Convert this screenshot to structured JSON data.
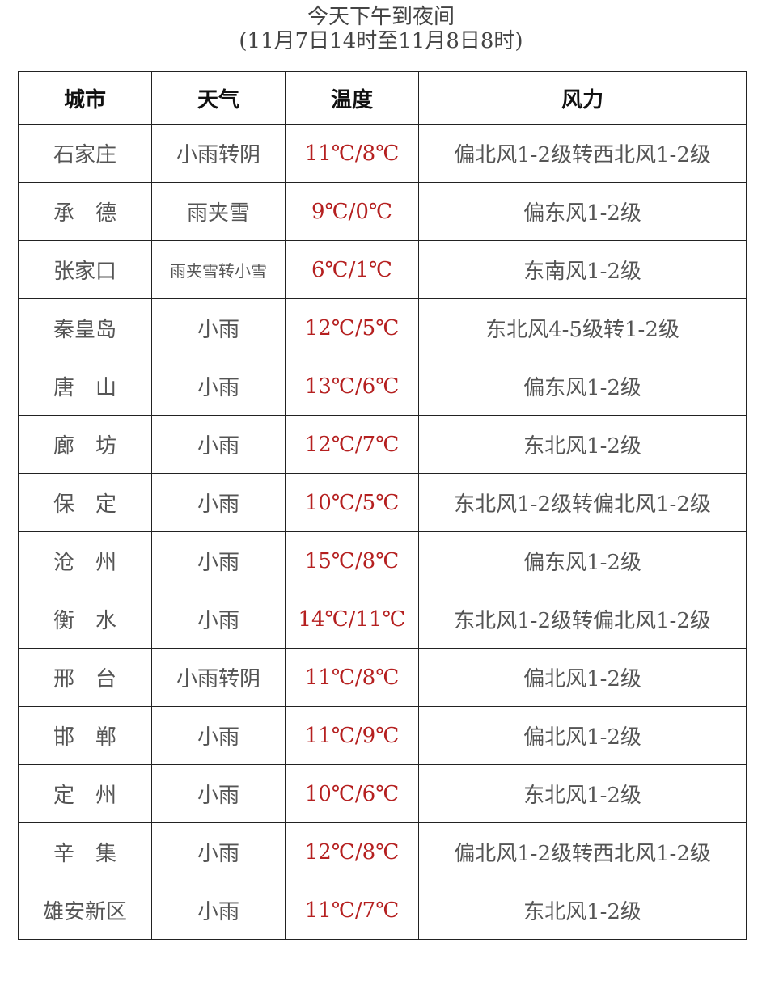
{
  "title": "今天下午到夜间",
  "subtitle": "(11月7日14时至11月8日8时)",
  "headers": [
    "城市",
    "天气",
    "温度",
    "风力"
  ],
  "rows": [
    [
      "石家庄",
      "小雨转阴",
      "11℃/8℃",
      "偏北风1-2级转西北风1-2级"
    ],
    [
      "承　德",
      "雨夹雪",
      "9℃/0℃",
      "偏东风1-2级"
    ],
    [
      "张家口",
      "雨夹雪转小雪",
      "6℃/1℃",
      "东南风1-2级"
    ],
    [
      "秦皇岛",
      "小雨",
      "12℃/5℃",
      "东北风4-5级转1-2级"
    ],
    [
      "唐　山",
      "小雨",
      "13℃/6℃",
      "偏东风1-2级"
    ],
    [
      "廊　坊",
      "小雨",
      "12℃/7℃",
      "东北风1-2级"
    ],
    [
      "保　定",
      "小雨",
      "10℃/5℃",
      "东北风1-2级转偏北风1-2级"
    ],
    [
      "沧　州",
      "小雨",
      "15℃/8℃",
      "偏东风1-2级"
    ],
    [
      "衡　水",
      "小雨",
      "14℃/11℃",
      "东北风1-2级转偏北风1-2级"
    ],
    [
      "邢　台",
      "小雨转阴",
      "11℃/8℃",
      "偏北风1-2级"
    ],
    [
      "邯　郸",
      "小雨",
      "11℃/9℃",
      "偏北风1-2级"
    ],
    [
      "定　州",
      "小雨",
      "10℃/6℃",
      "东北风1-2级"
    ],
    [
      "辛　集",
      "小雨",
      "12℃/8℃",
      "偏北风1-2级转西北风1-2级"
    ],
    [
      "雄安新区",
      "小雨",
      "11℃/7℃",
      "东北风1-2级"
    ]
  ],
  "colors": {
    "temperature": "#b52020",
    "text": "#555555",
    "header": "#111111"
  }
}
